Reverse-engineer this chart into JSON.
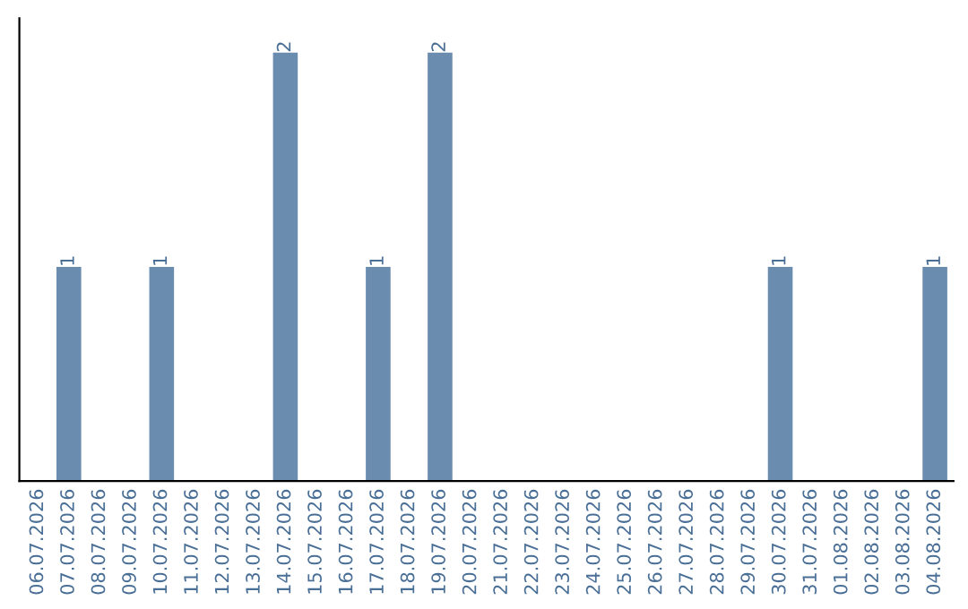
{
  "chart_data": {
    "type": "bar",
    "categories": [
      "06.07.2026",
      "07.07.2026",
      "08.07.2026",
      "09.07.2026",
      "10.07.2026",
      "11.07.2026",
      "12.07.2026",
      "13.07.2026",
      "14.07.2026",
      "15.07.2026",
      "16.07.2026",
      "17.07.2026",
      "18.07.2026",
      "19.07.2026",
      "20.07.2026",
      "21.07.2026",
      "22.07.2026",
      "23.07.2026",
      "24.07.2026",
      "25.07.2026",
      "26.07.2026",
      "27.07.2026",
      "28.07.2026",
      "29.07.2026",
      "30.07.2026",
      "31.07.2026",
      "01.08.2026",
      "02.08.2026",
      "03.08.2026",
      "04.08.2026"
    ],
    "values": [
      0,
      1,
      0,
      0,
      1,
      0,
      0,
      0,
      2,
      0,
      0,
      1,
      0,
      2,
      0,
      0,
      0,
      0,
      0,
      0,
      0,
      0,
      0,
      0,
      1,
      0,
      0,
      0,
      0,
      1
    ],
    "value_labels": [
      null,
      "1",
      null,
      null,
      "1",
      null,
      null,
      null,
      "2",
      null,
      null,
      "1",
      null,
      "2",
      null,
      null,
      null,
      null,
      null,
      null,
      null,
      null,
      null,
      null,
      "1",
      null,
      null,
      null,
      null,
      "1"
    ],
    "color": "#6a8caf",
    "tick_labels": "x",
    "grid": false,
    "legend": false
  }
}
